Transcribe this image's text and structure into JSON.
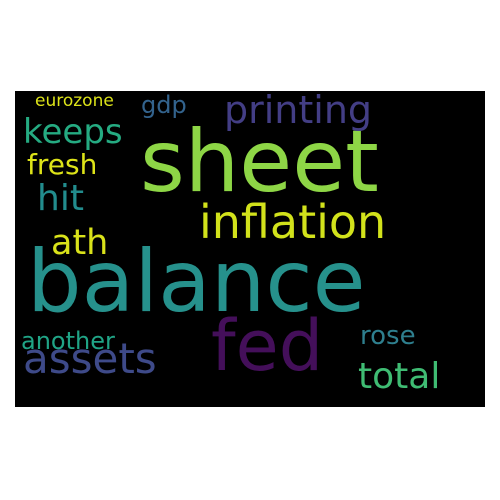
{
  "wordcloud": {
    "background": "#000000",
    "words": [
      {
        "id": "balance",
        "text": "balance",
        "color": "#26918C"
      },
      {
        "id": "sheet",
        "text": "sheet",
        "color": "#8ED646"
      },
      {
        "id": "inflation",
        "text": "inflation",
        "color": "#D2E21B"
      },
      {
        "id": "fed",
        "text": "fed",
        "color": "#440F5A"
      },
      {
        "id": "assets",
        "text": "assets",
        "color": "#3E4A89"
      },
      {
        "id": "printing",
        "text": "printing",
        "color": "#433E85"
      },
      {
        "id": "keeps",
        "text": "keeps",
        "color": "#25AB82"
      },
      {
        "id": "total",
        "text": "total",
        "color": "#3FBC73"
      },
      {
        "id": "hit",
        "text": "hit",
        "color": "#228C8D"
      },
      {
        "id": "ath",
        "text": "ath",
        "color": "#D9E21A"
      },
      {
        "id": "fresh",
        "text": "fresh",
        "color": "#DDE318"
      },
      {
        "id": "rose",
        "text": "rose",
        "color": "#2E7F8E"
      },
      {
        "id": "another",
        "text": "another",
        "color": "#20A486"
      },
      {
        "id": "gdp",
        "text": "gdp",
        "color": "#33638D"
      },
      {
        "id": "eurozone",
        "text": "eurozone",
        "color": "#DCE319"
      }
    ]
  }
}
